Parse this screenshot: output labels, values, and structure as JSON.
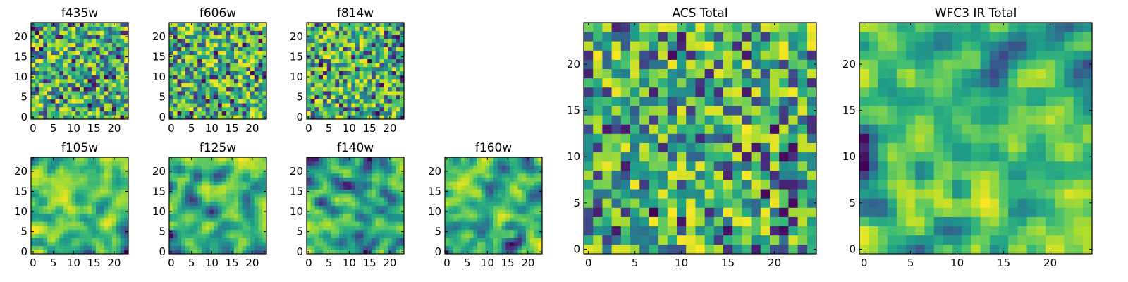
{
  "chart_data": [
    {
      "type": "heatmap",
      "title": "f435w",
      "grid_size": 24,
      "seed": 11,
      "smooth": 0,
      "block": 1,
      "xticks": [
        0,
        5,
        10,
        15,
        20
      ],
      "yticks": [
        0,
        5,
        10,
        15,
        20
      ],
      "xlim": [
        0,
        24
      ],
      "ylim": [
        0,
        24
      ],
      "colormap": "viridis"
    },
    {
      "type": "heatmap",
      "title": "f606w",
      "grid_size": 24,
      "seed": 23,
      "smooth": 0,
      "block": 1,
      "xticks": [
        0,
        5,
        10,
        15,
        20
      ],
      "yticks": [
        0,
        5,
        10,
        15,
        20
      ],
      "xlim": [
        0,
        24
      ],
      "ylim": [
        0,
        24
      ],
      "colormap": "viridis"
    },
    {
      "type": "heatmap",
      "title": "f814w",
      "grid_size": 24,
      "seed": 37,
      "smooth": 0,
      "block": 1,
      "xticks": [
        0,
        5,
        10,
        15,
        20
      ],
      "yticks": [
        0,
        5,
        10,
        15,
        20
      ],
      "xlim": [
        0,
        24
      ],
      "ylim": [
        0,
        24
      ],
      "colormap": "viridis"
    },
    {
      "type": "heatmap",
      "title": "f105w",
      "grid_size": 24,
      "seed": 41,
      "smooth": 1,
      "block": 2,
      "xticks": [
        0,
        5,
        10,
        15,
        20
      ],
      "yticks": [
        0,
        5,
        10,
        15,
        20
      ],
      "xlim": [
        0,
        24
      ],
      "ylim": [
        0,
        24
      ],
      "colormap": "viridis"
    },
    {
      "type": "heatmap",
      "title": "f125w",
      "grid_size": 24,
      "seed": 53,
      "smooth": 1,
      "block": 2,
      "xticks": [
        0,
        5,
        10,
        15,
        20
      ],
      "yticks": [
        0,
        5,
        10,
        15,
        20
      ],
      "xlim": [
        0,
        24
      ],
      "ylim": [
        0,
        24
      ],
      "colormap": "viridis"
    },
    {
      "type": "heatmap",
      "title": "f140w",
      "grid_size": 24,
      "seed": 67,
      "smooth": 1,
      "block": 2,
      "xticks": [
        0,
        5,
        10,
        15,
        20
      ],
      "yticks": [
        0,
        5,
        10,
        15,
        20
      ],
      "xlim": [
        0,
        24
      ],
      "ylim": [
        0,
        24
      ],
      "colormap": "viridis"
    },
    {
      "type": "heatmap",
      "title": "f160w",
      "grid_size": 24,
      "seed": 79,
      "smooth": 1,
      "block": 2,
      "xticks": [
        0,
        5,
        10,
        15,
        20
      ],
      "yticks": [
        0,
        5,
        10,
        15,
        20
      ],
      "xlim": [
        0,
        24
      ],
      "ylim": [
        0,
        24
      ],
      "colormap": "viridis"
    },
    {
      "type": "heatmap",
      "title": "ACS Total",
      "grid_size": 25,
      "seed": 89,
      "smooth": 0,
      "block": 1,
      "xticks": [
        0,
        5,
        10,
        15,
        20
      ],
      "yticks": [
        0,
        5,
        10,
        15,
        20
      ],
      "xlim": [
        0,
        25
      ],
      "ylim": [
        0,
        25
      ],
      "colormap": "viridis"
    },
    {
      "type": "heatmap",
      "title": "WFC3 IR Total",
      "grid_size": 25,
      "seed": 97,
      "smooth": 1,
      "block": 2,
      "xticks": [
        0,
        5,
        10,
        15,
        20
      ],
      "yticks": [
        0,
        5,
        10,
        15,
        20
      ],
      "xlim": [
        0,
        25
      ],
      "ylim": [
        0,
        25
      ],
      "colormap": "viridis"
    }
  ]
}
